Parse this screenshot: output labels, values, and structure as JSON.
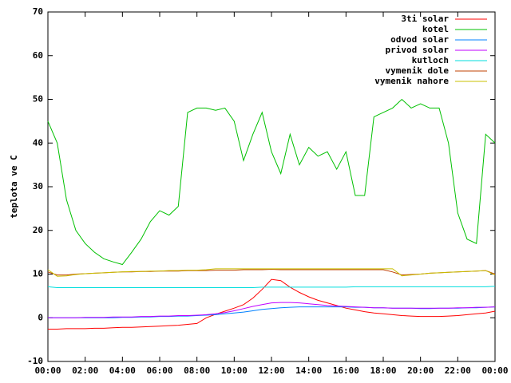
{
  "chart_data": {
    "type": "line",
    "ylabel": "teplota ve C",
    "xlim": [
      0,
      24
    ],
    "ylim": [
      -10,
      70
    ],
    "xticks": [
      {
        "value": 0,
        "label": "00:00"
      },
      {
        "value": 2,
        "label": "02:00"
      },
      {
        "value": 4,
        "label": "04:00"
      },
      {
        "value": 6,
        "label": "06:00"
      },
      {
        "value": 8,
        "label": "08:00"
      },
      {
        "value": 10,
        "label": "10:00"
      },
      {
        "value": 12,
        "label": "12:00"
      },
      {
        "value": 14,
        "label": "14:00"
      },
      {
        "value": 16,
        "label": "16:00"
      },
      {
        "value": 18,
        "label": "18:00"
      },
      {
        "value": 20,
        "label": "20:00"
      },
      {
        "value": 22,
        "label": "22:00"
      },
      {
        "value": 24,
        "label": "00:00"
      }
    ],
    "yticks": [
      -10,
      0,
      10,
      20,
      30,
      40,
      50,
      60,
      70
    ],
    "legend": "upper right",
    "x": [
      0,
      0.5,
      1,
      1.5,
      2,
      2.5,
      3,
      3.5,
      4,
      4.5,
      5,
      5.5,
      6,
      6.5,
      7,
      7.5,
      8,
      8.5,
      9,
      9.5,
      10,
      10.5,
      11,
      11.5,
      12,
      12.5,
      13,
      13.5,
      14,
      14.5,
      15,
      15.5,
      16,
      16.5,
      17,
      17.5,
      18,
      18.5,
      19,
      19.5,
      20,
      20.5,
      21,
      21.5,
      22,
      22.5,
      23,
      23.5,
      24
    ],
    "series": [
      {
        "name": "3ti solar",
        "color": "#ff0000",
        "values": [
          -2.6,
          -2.6,
          -2.5,
          -2.5,
          -2.5,
          -2.4,
          -2.4,
          -2.3,
          -2.2,
          -2.2,
          -2.1,
          -2,
          -1.9,
          -1.8,
          -1.7,
          -1.5,
          -1.3,
          0,
          0.8,
          1.5,
          2.2,
          3,
          4.5,
          6.5,
          8.8,
          8.5,
          7,
          5.8,
          4.8,
          4,
          3.4,
          2.8,
          2.2,
          1.8,
          1.4,
          1.1,
          0.9,
          0.7,
          0.5,
          0.4,
          0.3,
          0.3,
          0.3,
          0.4,
          0.5,
          0.7,
          0.9,
          1.1,
          1.5
        ]
      },
      {
        "name": "kotel",
        "color": "#00c000",
        "values": [
          45,
          40,
          27,
          20,
          17,
          15,
          13.5,
          12.8,
          12.2,
          15,
          18,
          22,
          24.5,
          23.5,
          25.5,
          47,
          48,
          48,
          47.5,
          48,
          45,
          36,
          42,
          47,
          38,
          33,
          42,
          35,
          39,
          37,
          38,
          34,
          38,
          28,
          28,
          46,
          47,
          48,
          50,
          48,
          49,
          48,
          48,
          40,
          24,
          18,
          17,
          42,
          40
        ]
      },
      {
        "name": "odvod solar",
        "color": "#0080ff",
        "values": [
          0,
          0,
          0,
          0,
          0,
          0,
          0,
          0,
          0.1,
          0.1,
          0.2,
          0.2,
          0.3,
          0.3,
          0.4,
          0.4,
          0.5,
          0.6,
          0.7,
          0.9,
          1.1,
          1.3,
          1.6,
          1.9,
          2.1,
          2.3,
          2.4,
          2.5,
          2.5,
          2.5,
          2.5,
          2.5,
          2.5,
          2.4,
          2.4,
          2.3,
          2.3,
          2.2,
          2.2,
          2.2,
          2.1,
          2.1,
          2.2,
          2.2,
          2.2,
          2.3,
          2.3,
          2.4,
          2.5
        ]
      },
      {
        "name": "privod solar",
        "color": "#c000ff",
        "values": [
          0,
          0,
          0,
          0,
          0.1,
          0.1,
          0.1,
          0.2,
          0.2,
          0.2,
          0.3,
          0.3,
          0.4,
          0.4,
          0.5,
          0.5,
          0.6,
          0.7,
          0.9,
          1.2,
          1.6,
          2.1,
          2.6,
          3,
          3.4,
          3.5,
          3.5,
          3.4,
          3.2,
          3,
          2.8,
          2.7,
          2.6,
          2.5,
          2.4,
          2.3,
          2.3,
          2.2,
          2.2,
          2.2,
          2.2,
          2.2,
          2.2,
          2.2,
          2.3,
          2.3,
          2.4,
          2.4,
          2.5
        ]
      },
      {
        "name": "kutloch",
        "color": "#00dddd",
        "values": [
          7.1,
          6.9,
          6.9,
          6.9,
          6.9,
          6.9,
          6.9,
          6.9,
          6.9,
          6.9,
          6.9,
          6.9,
          6.9,
          6.9,
          6.9,
          6.9,
          6.9,
          6.9,
          6.9,
          6.9,
          6.9,
          6.9,
          6.9,
          7,
          7,
          7,
          7,
          7,
          7,
          7,
          7,
          7,
          7,
          7.1,
          7.1,
          7.1,
          7.1,
          7.1,
          7.1,
          7.1,
          7.1,
          7.1,
          7.1,
          7.1,
          7.1,
          7.1,
          7.1,
          7.1,
          7.2
        ]
      },
      {
        "name": "vymenik dole",
        "color": "#c04000",
        "values": [
          10.5,
          9.8,
          9.8,
          10,
          10.1,
          10.2,
          10.3,
          10.4,
          10.5,
          10.5,
          10.6,
          10.6,
          10.7,
          10.7,
          10.7,
          10.8,
          10.8,
          10.8,
          10.9,
          10.9,
          10.9,
          11,
          11,
          11,
          11.1,
          11,
          11,
          11,
          11,
          11,
          11,
          11,
          11,
          11,
          11,
          11,
          11,
          10.5,
          9.8,
          9.9,
          10,
          10.2,
          10.3,
          10.4,
          10.5,
          10.6,
          10.7,
          10.8,
          10
        ]
      },
      {
        "name": "vymenik nahore",
        "color": "#c8c000",
        "values": [
          11,
          9.5,
          9.6,
          9.9,
          10.1,
          10.2,
          10.3,
          10.4,
          10.5,
          10.6,
          10.6,
          10.7,
          10.7,
          10.8,
          10.8,
          10.9,
          10.9,
          11,
          11.2,
          11.2,
          11.2,
          11.2,
          11.2,
          11.2,
          11.2,
          11.2,
          11.2,
          11.2,
          11.2,
          11.2,
          11.2,
          11.2,
          11.2,
          11.2,
          11.2,
          11.2,
          11.2,
          11.2,
          9.6,
          9.8,
          10,
          10.2,
          10.3,
          10.4,
          10.5,
          10.6,
          10.7,
          10.8,
          9.8
        ]
      }
    ]
  }
}
